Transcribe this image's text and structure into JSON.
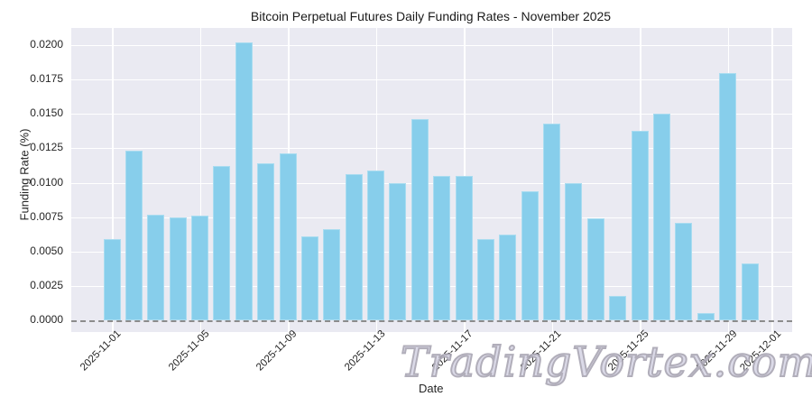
{
  "chart_data": {
    "type": "bar",
    "title": "Bitcoin Perpetual Futures Daily Funding Rates - November 2025",
    "xlabel": "Date",
    "ylabel": "Funding Rate (%)",
    "ylim": [
      0.0,
      0.0215
    ],
    "yticks": [
      "0.0000",
      "0.0025",
      "0.0050",
      "0.0075",
      "0.0100",
      "0.0125",
      "0.0150",
      "0.0175",
      "0.0200"
    ],
    "xticks": [
      "2025-11-01",
      "2025-11-05",
      "2025-11-09",
      "2025-11-13",
      "2025-11-17",
      "2025-11-21",
      "2025-11-25",
      "2025-11-29",
      "2025-12-01"
    ],
    "grid": true,
    "bar_color": "#87ceeb",
    "zero_line": {
      "style": "dashed",
      "color": "#8c8c8c"
    },
    "categories": [
      "2025-11-01",
      "2025-11-02",
      "2025-11-03",
      "2025-11-04",
      "2025-11-05",
      "2025-11-06",
      "2025-11-07",
      "2025-11-08",
      "2025-11-09",
      "2025-11-10",
      "2025-11-11",
      "2025-11-12",
      "2025-11-13",
      "2025-11-14",
      "2025-11-15",
      "2025-11-16",
      "2025-11-17",
      "2025-11-18",
      "2025-11-19",
      "2025-11-20",
      "2025-11-21",
      "2025-11-22",
      "2025-11-23",
      "2025-11-24",
      "2025-11-25",
      "2025-11-26",
      "2025-11-27",
      "2025-11-28",
      "2025-11-29",
      "2025-11-30"
    ],
    "values": [
      0.0059,
      0.0123,
      0.0077,
      0.0075,
      0.0076,
      0.0112,
      0.0202,
      0.0114,
      0.0121,
      0.0061,
      0.0066,
      0.0106,
      0.0109,
      0.01,
      0.0146,
      0.0105,
      0.0105,
      0.0059,
      0.0062,
      0.0094,
      0.0143,
      0.01,
      0.0074,
      0.0018,
      0.0138,
      0.015,
      0.0071,
      0.0005,
      0.018,
      0.0041
    ]
  },
  "watermark": "TradingVortex.com"
}
